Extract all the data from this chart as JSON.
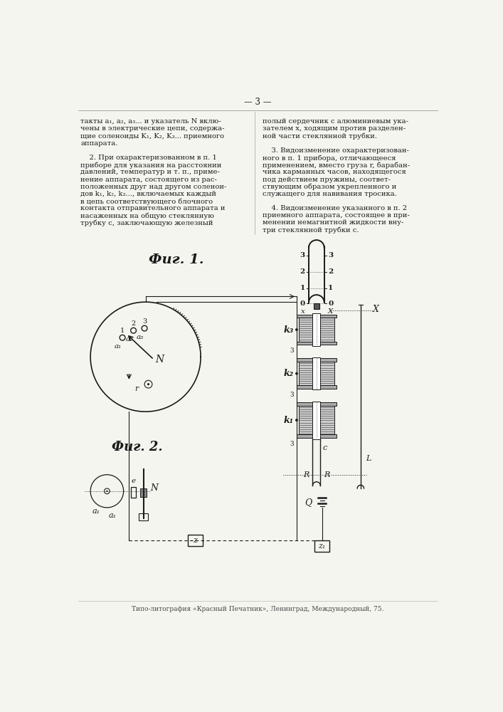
{
  "page_number": "3",
  "bg_color": "#f5f5f0",
  "text_color": "#1a1a1a",
  "left_col_text": [
    "такты a₁, a₂, a₃... и указатель N вклю-",
    "чены в электрические цепи, содержа-",
    "щие соленоиды K₁, K₂, K₃... приемного",
    "аппарата.",
    "",
    "    2. При охарактеризованном в п. 1",
    "приборе для указания на расстоянии",
    "давлений, температур и т. п., приме-",
    "нение аппарата, состоящего из рас-",
    "положенных друг над другом соленои-",
    "дов k₁, k₂, k₃..., включаемых каждый",
    "в цепь соответствующего блочного",
    "контакта отправительного аппарата и",
    "насаженных на общую стеклянную",
    "трубку c, заключающую железный"
  ],
  "right_col_text": [
    "полый сердечник с алюминиевым ука-",
    "зателем x, ходящим против разделен-",
    "ной части стеклянной трубки.",
    "",
    "    3. Видоизменение охарактеризован-",
    "ного в п. 1 прибора, отличающееся",
    "применением, вместо груза r, барабан-",
    "чика карманных часов, находящегося",
    "под действием пружины, соответ-",
    "ствующим образом укрепленного и",
    "служащего для навивания тросика.",
    "",
    "    4. Видоизменение указанного в п. 2",
    "приемного аппарата, состоящее в при-",
    "менении немагнитной жидкости вну-",
    "три стеклянной трубки c."
  ],
  "footer_text": "Типо-литография «Красный Печатник», Ленинград, Международный, 75."
}
